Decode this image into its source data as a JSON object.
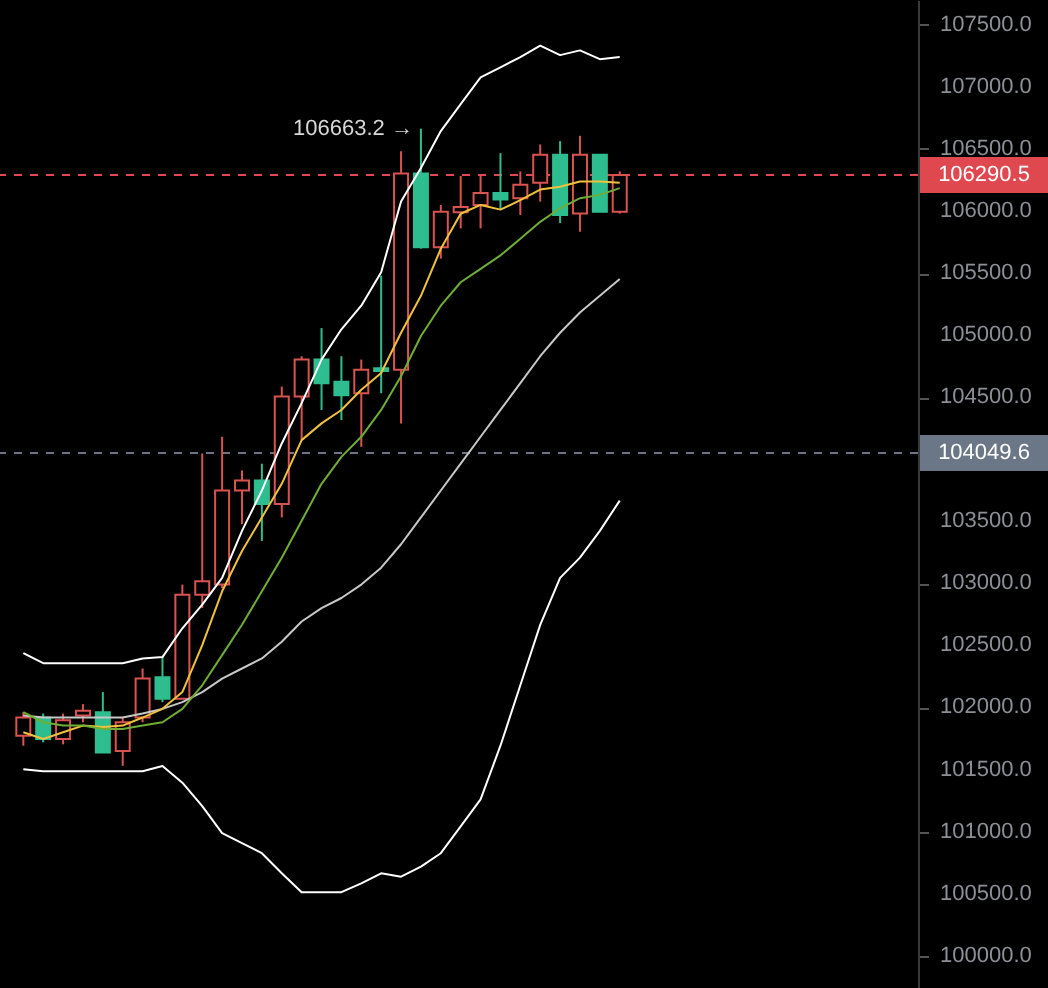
{
  "chart_data": {
    "type": "candlestick",
    "categories": [
      null,
      null,
      null,
      null,
      null,
      null,
      null,
      null,
      null,
      null,
      null,
      null,
      null,
      null,
      null,
      null,
      null,
      null,
      null,
      null,
      null,
      null,
      null,
      null,
      null,
      null,
      null,
      null,
      null,
      null,
      null
    ],
    "ohlc": [
      [
        101773,
        101962,
        101692,
        101919
      ],
      [
        101919,
        101951,
        101719,
        101746
      ],
      [
        101746,
        101951,
        101703,
        101897
      ],
      [
        101935,
        102027,
        101881,
        101973
      ],
      [
        101962,
        102124,
        101638,
        101638
      ],
      [
        101649,
        101919,
        101530,
        101881
      ],
      [
        101919,
        102314,
        101881,
        102233
      ],
      [
        102244,
        102406,
        102043,
        102070
      ],
      [
        102070,
        102990,
        102070,
        102909
      ],
      [
        102909,
        104046,
        102801,
        103017
      ],
      [
        102990,
        104181,
        102963,
        103748
      ],
      [
        103748,
        103910,
        103477,
        103829
      ],
      [
        103829,
        103964,
        103342,
        103640
      ],
      [
        103640,
        104586,
        103531,
        104505
      ],
      [
        104505,
        104830,
        104154,
        104803
      ],
      [
        104803,
        105057,
        104397,
        104613
      ],
      [
        104624,
        104830,
        104316,
        104516
      ],
      [
        104532,
        104803,
        104100,
        104722
      ],
      [
        104733,
        105479,
        104532,
        104711
      ],
      [
        104722,
        106482,
        104289,
        106303
      ],
      [
        106303,
        106663.2,
        105697,
        105708
      ],
      [
        105708,
        106049,
        105616,
        105995
      ],
      [
        105990,
        106282,
        105860,
        106033
      ],
      [
        106049,
        106282,
        105860,
        106146
      ],
      [
        106146,
        106466,
        106011,
        106092
      ],
      [
        106103,
        106319,
        105968,
        106211
      ],
      [
        106227,
        106536,
        106076,
        106454
      ],
      [
        106454,
        106563,
        105903,
        105968
      ],
      [
        105979,
        106606,
        105833,
        106454
      ],
      [
        106454,
        106454,
        105995,
        105995
      ],
      [
        105995,
        106319,
        105979,
        106290.5
      ]
    ],
    "colors": [
      "#d9534f",
      "#2ebd8e",
      "#d9534f",
      "#d9534f",
      "#2ebd8e",
      "#d9534f",
      "#d9534f",
      "#2ebd8e",
      "#d9534f",
      "#d9534f",
      "#d9534f",
      "#d9534f",
      "#2ebd8e",
      "#d9534f",
      "#d9534f",
      "#2ebd8e",
      "#2ebd8e",
      "#d9534f",
      "#2ebd8e",
      "#d9534f",
      "#2ebd8e",
      "#d9534f",
      "#d9534f",
      "#d9534f",
      "#2ebd8e",
      "#d9534f",
      "#d9534f",
      "#2ebd8e",
      "#d9534f",
      "#2ebd8e",
      "#d9534f"
    ],
    "series": [
      {
        "type": "line",
        "color": "#ffffff",
        "values": [
          102438,
          102357,
          102357,
          102357,
          102357,
          102357,
          102395,
          102406,
          102638,
          102828,
          103044,
          103423,
          103748,
          104127,
          104452,
          104803,
          105047,
          105237,
          105507,
          106076,
          106346,
          106644,
          106861,
          107077,
          107158,
          107240,
          107332,
          107256,
          107294,
          107223,
          107240
        ]
      },
      {
        "type": "line",
        "color": "#c8c8c8",
        "values": [
          101935,
          101919,
          101919,
          101919,
          101919,
          101919,
          101951,
          101989,
          102043,
          102124,
          102233,
          102314,
          102395,
          102530,
          102693,
          102801,
          102882,
          102990,
          103126,
          103315,
          103531,
          103748,
          103964,
          104181,
          104397,
          104613,
          104830,
          105019,
          105182,
          105317,
          105452
        ]
      },
      {
        "type": "line",
        "color": "#ffffff",
        "values": [
          101502,
          101486,
          101486,
          101486,
          101486,
          101486,
          101486,
          101529,
          101394,
          101205,
          100988,
          100907,
          100826,
          100664,
          100512,
          100512,
          100512,
          100583,
          100664,
          100637,
          100718,
          100826,
          101042,
          101259,
          101692,
          102179,
          102666,
          103044,
          103207,
          103423,
          103667
        ]
      },
      {
        "type": "line",
        "color": "#f0c23c",
        "values": [
          101800,
          101746,
          101800,
          101854,
          101843,
          101854,
          101919,
          101989,
          102124,
          102503,
          102936,
          103261,
          103531,
          103802,
          104154,
          104289,
          104397,
          104560,
          104695,
          105019,
          105317,
          105696,
          105978,
          106049,
          106011,
          106087,
          106173,
          106195,
          106238,
          106238,
          106227
        ]
      },
      {
        "type": "line",
        "color": "#6fae35",
        "values": [
          101962,
          101881,
          101854,
          101854,
          101827,
          101827,
          101854,
          101881,
          101989,
          102179,
          102422,
          102666,
          102936,
          103207,
          103504,
          103802,
          104019,
          104181,
          104397,
          104668,
          104993,
          105237,
          105426,
          105534,
          105642,
          105777,
          105913,
          106022,
          106103,
          106130,
          106184
        ]
      }
    ],
    "ylim": [
      99740,
      107700
    ],
    "yticks": [
      {
        "value": 107500,
        "label": "107500.0"
      },
      {
        "value": 107000,
        "label": "107000.0"
      },
      {
        "value": 106500,
        "label": "106500.0"
      },
      {
        "value": 106000,
        "label": "106000.0"
      },
      {
        "value": 105500,
        "label": "105500.0"
      },
      {
        "value": 105000,
        "label": "105000.0"
      },
      {
        "value": 104500,
        "label": "104500.0"
      },
      {
        "value": 103500,
        "label": "103500.0"
      },
      {
        "value": 103000,
        "label": "103000.0"
      },
      {
        "value": 102500,
        "label": "102500.0"
      },
      {
        "value": 102000,
        "label": "102000.0"
      },
      {
        "value": 101500,
        "label": "101500.0"
      },
      {
        "value": 101000,
        "label": "101000.0"
      },
      {
        "value": 100500,
        "label": "100500.0"
      },
      {
        "value": 100000,
        "label": "100000.0"
      }
    ],
    "ref_lines": [
      {
        "axis": "y",
        "value": 106290.5,
        "label": "106290.5",
        "color": "#e0484f",
        "line_style": "dashed"
      },
      {
        "axis": "y",
        "value": 104049.6,
        "label": "104049.6",
        "color": "#6b7686",
        "line_style": "dashed"
      }
    ],
    "annotations": [
      "106663.2 →"
    ],
    "tick_labels": "y",
    "grid": false
  }
}
